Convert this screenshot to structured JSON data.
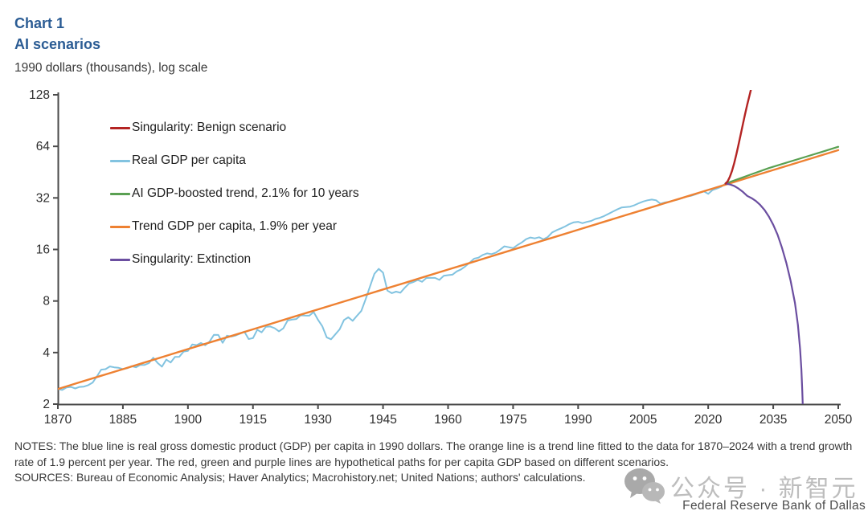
{
  "header": {
    "chart_number": "Chart 1",
    "title": "AI scenarios",
    "units_label": "1990 dollars (thousands), log scale"
  },
  "footer": {
    "notes": "NOTES: The blue line is real gross domestic product (GDP) per capita in 1990 dollars. The orange line is a trend line fitted to the data for 1870–2024 with a trend growth rate of 1.9 percent per year. The red, green and purple lines are hypothetical paths for per capita GDP based on different scenarios.",
    "sources": "SOURCES: Bureau of Economic Analysis; Haver Analytics; Macrohistory.net; United Nations; authors' calculations."
  },
  "watermark": {
    "icon": "wechat-logo",
    "text": "公众号 · 新智元",
    "credit": "Federal Reserve Bank of Dallas"
  },
  "colors": {
    "title_blue": "#2b5c94",
    "axis": "#4a4a4a",
    "tick_label": "#2d2d2d",
    "notes_text": "#383838",
    "watermark_gray": "#bdbdbd",
    "credit_gray": "#4b4b4b"
  },
  "chart_data": {
    "type": "line",
    "title": "AI scenarios",
    "ylabel": "1990 dollars (thousands), log scale",
    "xlabel": "",
    "y_scale": "log2",
    "grid": false,
    "legend_position": "inside-top-left",
    "xlim": [
      1870,
      2050
    ],
    "ylim": [
      2,
      128
    ],
    "x_ticks": [
      1870,
      1885,
      1900,
      1915,
      1930,
      1945,
      1960,
      1975,
      1990,
      2005,
      2020,
      2035,
      2050
    ],
    "y_ticks": [
      128,
      64,
      32,
      16,
      8,
      4,
      2
    ],
    "series": [
      {
        "name": "Singularity: Benign scenario",
        "color": "#b42423",
        "points": [
          [
            2024,
            38.8
          ],
          [
            2024.5,
            40
          ],
          [
            2025,
            42.5
          ],
          [
            2025.5,
            46
          ],
          [
            2026,
            51
          ],
          [
            2026.5,
            57.5
          ],
          [
            2027,
            65.5
          ],
          [
            2027.5,
            75
          ],
          [
            2028,
            86
          ],
          [
            2028.5,
            98.5
          ],
          [
            2029,
            112
          ],
          [
            2029.5,
            126
          ],
          [
            2030,
            142
          ],
          [
            2030.4,
            160
          ]
        ]
      },
      {
        "name": "Real GDP per capita",
        "color": "#82c3e0",
        "points": [
          [
            1870,
            2.45
          ],
          [
            1871,
            2.42
          ],
          [
            1872,
            2.5
          ],
          [
            1873,
            2.52
          ],
          [
            1874,
            2.47
          ],
          [
            1875,
            2.52
          ],
          [
            1876,
            2.53
          ],
          [
            1877,
            2.58
          ],
          [
            1878,
            2.67
          ],
          [
            1879,
            2.9
          ],
          [
            1880,
            3.18
          ],
          [
            1881,
            3.2
          ],
          [
            1882,
            3.32
          ],
          [
            1883,
            3.28
          ],
          [
            1884,
            3.26
          ],
          [
            1885,
            3.2
          ],
          [
            1886,
            3.24
          ],
          [
            1887,
            3.33
          ],
          [
            1888,
            3.28
          ],
          [
            1889,
            3.39
          ],
          [
            1890,
            3.39
          ],
          [
            1891,
            3.47
          ],
          [
            1892,
            3.73
          ],
          [
            1893,
            3.48
          ],
          [
            1894,
            3.31
          ],
          [
            1895,
            3.64
          ],
          [
            1896,
            3.5
          ],
          [
            1897,
            3.77
          ],
          [
            1898,
            3.78
          ],
          [
            1899,
            4.05
          ],
          [
            1900,
            4.09
          ],
          [
            1901,
            4.46
          ],
          [
            1902,
            4.42
          ],
          [
            1903,
            4.55
          ],
          [
            1904,
            4.41
          ],
          [
            1905,
            4.64
          ],
          [
            1906,
            5.08
          ],
          [
            1907,
            5.07
          ],
          [
            1908,
            4.56
          ],
          [
            1909,
            5.02
          ],
          [
            1910,
            4.96
          ],
          [
            1911,
            5.03
          ],
          [
            1912,
            5.16
          ],
          [
            1913,
            5.3
          ],
          [
            1914,
            4.8
          ],
          [
            1915,
            4.86
          ],
          [
            1916,
            5.44
          ],
          [
            1917,
            5.25
          ],
          [
            1918,
            5.66
          ],
          [
            1919,
            5.68
          ],
          [
            1920,
            5.55
          ],
          [
            1921,
            5.32
          ],
          [
            1922,
            5.54
          ],
          [
            1923,
            6.16
          ],
          [
            1924,
            6.23
          ],
          [
            1925,
            6.28
          ],
          [
            1926,
            6.6
          ],
          [
            1927,
            6.58
          ],
          [
            1928,
            6.57
          ],
          [
            1929,
            6.9
          ],
          [
            1930,
            6.21
          ],
          [
            1931,
            5.69
          ],
          [
            1932,
            4.91
          ],
          [
            1933,
            4.78
          ],
          [
            1934,
            5.11
          ],
          [
            1935,
            5.47
          ],
          [
            1936,
            6.2
          ],
          [
            1937,
            6.43
          ],
          [
            1938,
            6.13
          ],
          [
            1939,
            6.56
          ],
          [
            1940,
            7.01
          ],
          [
            1941,
            8.21
          ],
          [
            1942,
            9.74
          ],
          [
            1943,
            11.52
          ],
          [
            1944,
            12.33
          ],
          [
            1945,
            11.71
          ],
          [
            1946,
            9.2
          ],
          [
            1947,
            8.89
          ],
          [
            1948,
            9.07
          ],
          [
            1949,
            8.94
          ],
          [
            1950,
            9.56
          ],
          [
            1951,
            10.12
          ],
          [
            1952,
            10.32
          ],
          [
            1953,
            10.61
          ],
          [
            1954,
            10.36
          ],
          [
            1955,
            10.9
          ],
          [
            1956,
            10.91
          ],
          [
            1957,
            10.92
          ],
          [
            1958,
            10.63
          ],
          [
            1959,
            11.23
          ],
          [
            1960,
            11.33
          ],
          [
            1961,
            11.4
          ],
          [
            1962,
            11.91
          ],
          [
            1963,
            12.24
          ],
          [
            1964,
            12.77
          ],
          [
            1965,
            13.42
          ],
          [
            1966,
            14.13
          ],
          [
            1967,
            14.33
          ],
          [
            1968,
            14.86
          ],
          [
            1969,
            15.18
          ],
          [
            1970,
            15.03
          ],
          [
            1971,
            15.3
          ],
          [
            1972,
            15.94
          ],
          [
            1973,
            16.69
          ],
          [
            1974,
            16.49
          ],
          [
            1975,
            16.28
          ],
          [
            1976,
            16.98
          ],
          [
            1977,
            17.57
          ],
          [
            1978,
            18.37
          ],
          [
            1979,
            18.79
          ],
          [
            1980,
            18.58
          ],
          [
            1981,
            18.86
          ],
          [
            1982,
            18.33
          ],
          [
            1983,
            18.92
          ],
          [
            1984,
            20.12
          ],
          [
            1985,
            20.72
          ],
          [
            1986,
            21.24
          ],
          [
            1987,
            21.79
          ],
          [
            1988,
            22.5
          ],
          [
            1989,
            23.06
          ],
          [
            1990,
            23.2
          ],
          [
            1991,
            22.79
          ],
          [
            1992,
            23.17
          ],
          [
            1993,
            23.48
          ],
          [
            1994,
            24.13
          ],
          [
            1995,
            24.48
          ],
          [
            1996,
            25.07
          ],
          [
            1997,
            25.82
          ],
          [
            1998,
            26.62
          ],
          [
            1999,
            27.4
          ],
          [
            2000,
            28.13
          ],
          [
            2001,
            28.26
          ],
          [
            2002,
            28.47
          ],
          [
            2003,
            29.0
          ],
          [
            2004,
            29.8
          ],
          [
            2005,
            30.5
          ],
          [
            2006,
            31.0
          ],
          [
            2007,
            31.3
          ],
          [
            2008,
            31.0
          ],
          [
            2009,
            29.6
          ],
          [
            2010,
            30.1
          ],
          [
            2011,
            30.4
          ],
          [
            2012,
            30.9
          ],
          [
            2013,
            31.3
          ],
          [
            2014,
            31.9
          ],
          [
            2015,
            32.6
          ],
          [
            2016,
            32.9
          ],
          [
            2017,
            33.5
          ],
          [
            2018,
            34.3
          ],
          [
            2019,
            34.9
          ],
          [
            2020,
            33.8
          ],
          [
            2021,
            35.6
          ],
          [
            2022,
            36.3
          ],
          [
            2023,
            37.2
          ],
          [
            2024,
            38.8
          ]
        ]
      },
      {
        "name": "AI GDP-boosted trend, 2.1% for 10 years",
        "color": "#5aa052",
        "points": [
          [
            2024,
            38.8
          ],
          [
            2026,
            40.45
          ],
          [
            2028,
            42.17
          ],
          [
            2030,
            43.96
          ],
          [
            2032,
            45.83
          ],
          [
            2034,
            47.77
          ],
          [
            2038,
            51.3
          ],
          [
            2042,
            55.1
          ],
          [
            2046,
            59.2
          ],
          [
            2050,
            63.6
          ]
        ]
      },
      {
        "name": "Trend GDP per capita, 1.9% per year",
        "color": "#ee8132",
        "points": [
          [
            1870,
            2.45
          ],
          [
            1875,
            2.68
          ],
          [
            1880,
            2.93
          ],
          [
            1885,
            3.2
          ],
          [
            1890,
            3.5
          ],
          [
            1895,
            3.83
          ],
          [
            1900,
            4.19
          ],
          [
            1905,
            4.58
          ],
          [
            1910,
            5.0
          ],
          [
            1915,
            5.47
          ],
          [
            1920,
            5.98
          ],
          [
            1925,
            6.54
          ],
          [
            1930,
            7.15
          ],
          [
            1935,
            7.81
          ],
          [
            1940,
            8.54
          ],
          [
            1945,
            9.34
          ],
          [
            1950,
            10.21
          ],
          [
            1955,
            11.17
          ],
          [
            1960,
            12.21
          ],
          [
            1965,
            13.35
          ],
          [
            1970,
            14.59
          ],
          [
            1975,
            15.96
          ],
          [
            1980,
            17.44
          ],
          [
            1985,
            19.07
          ],
          [
            1990,
            20.85
          ],
          [
            1995,
            22.8
          ],
          [
            2000,
            24.93
          ],
          [
            2005,
            27.25
          ],
          [
            2010,
            29.8
          ],
          [
            2015,
            32.58
          ],
          [
            2020,
            35.62
          ],
          [
            2025,
            38.94
          ],
          [
            2030,
            42.57
          ],
          [
            2035,
            46.55
          ],
          [
            2040,
            50.89
          ],
          [
            2045,
            55.64
          ],
          [
            2050,
            60.83
          ]
        ]
      },
      {
        "name": "Singularity: Extinction",
        "color": "#6b4ea0",
        "points": [
          [
            2024,
            38.8
          ],
          [
            2025,
            38.4
          ],
          [
            2026,
            37.6
          ],
          [
            2027,
            36.3
          ],
          [
            2028,
            34.7
          ],
          [
            2029,
            32.9
          ],
          [
            2030,
            31.9
          ],
          [
            2031,
            30.7
          ],
          [
            2032,
            29.1
          ],
          [
            2033,
            27.2
          ],
          [
            2034,
            24.9
          ],
          [
            2035,
            22.3
          ],
          [
            2036,
            19.5
          ],
          [
            2037,
            16.4
          ],
          [
            2038,
            13.4
          ],
          [
            2039,
            10.5
          ],
          [
            2040,
            7.8
          ],
          [
            2040.7,
            5.8
          ],
          [
            2041.2,
            4.2
          ],
          [
            2041.5,
            3.2
          ],
          [
            2041.7,
            2.4
          ],
          [
            2041.8,
            2.0
          ]
        ]
      }
    ]
  }
}
